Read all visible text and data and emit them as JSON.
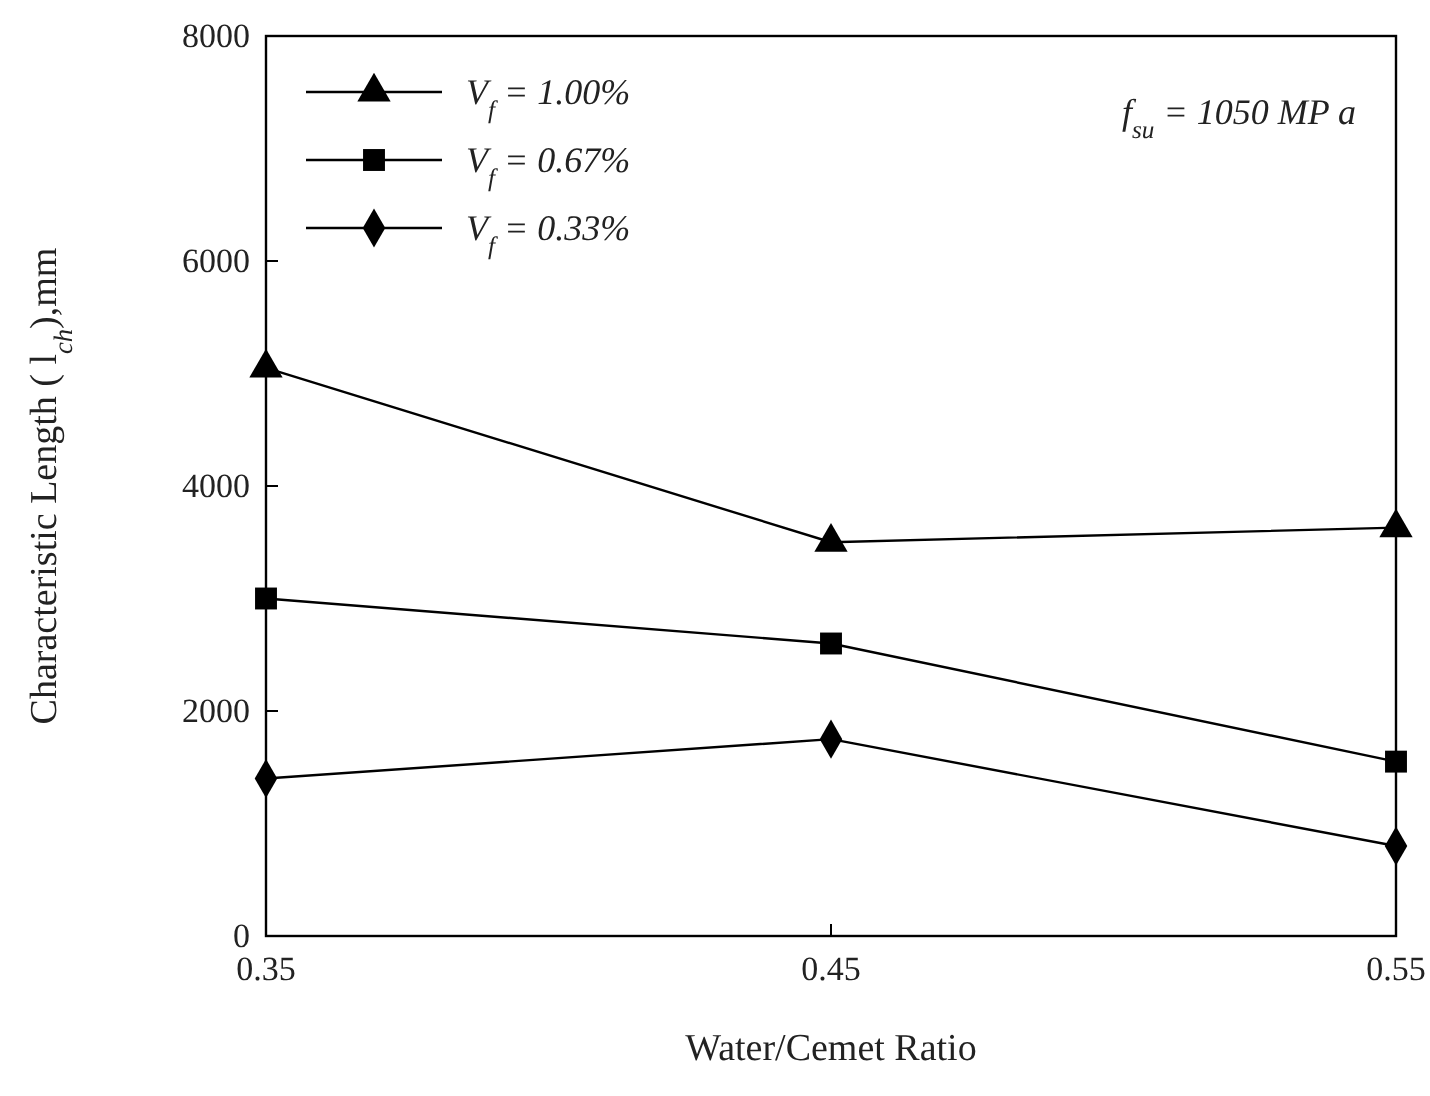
{
  "chart_data": {
    "type": "line",
    "xlabel": "Water/Cemet Ratio",
    "ylabel": "Characteristic Length ( l$_{ch}$),mm",
    "x": [
      0.35,
      0.45,
      0.55
    ],
    "xlim": [
      0.35,
      0.55
    ],
    "xticks": [
      0.35,
      0.45,
      0.55
    ],
    "ylim": [
      0,
      8000
    ],
    "yticks": [
      0,
      2000,
      4000,
      6000,
      8000
    ],
    "series": [
      {
        "name": "V$_{f}$ = 1.00%",
        "color": "#000000",
        "marker": "triangle",
        "values": [
          5050,
          3500,
          3630
        ]
      },
      {
        "name": "V$_{f}$ = 0.67%",
        "color": "#000000",
        "marker": "square",
        "values": [
          3000,
          2600,
          1550
        ]
      },
      {
        "name": "V$_{f}$ = 0.33%",
        "color": "#000000",
        "marker": "diamond",
        "values": [
          1400,
          1750,
          800
        ]
      }
    ],
    "annotations": [
      "f$_{su}$ = 1050 MP a"
    ],
    "legend": "top left",
    "grid": false,
    "line_style": "solid"
  }
}
